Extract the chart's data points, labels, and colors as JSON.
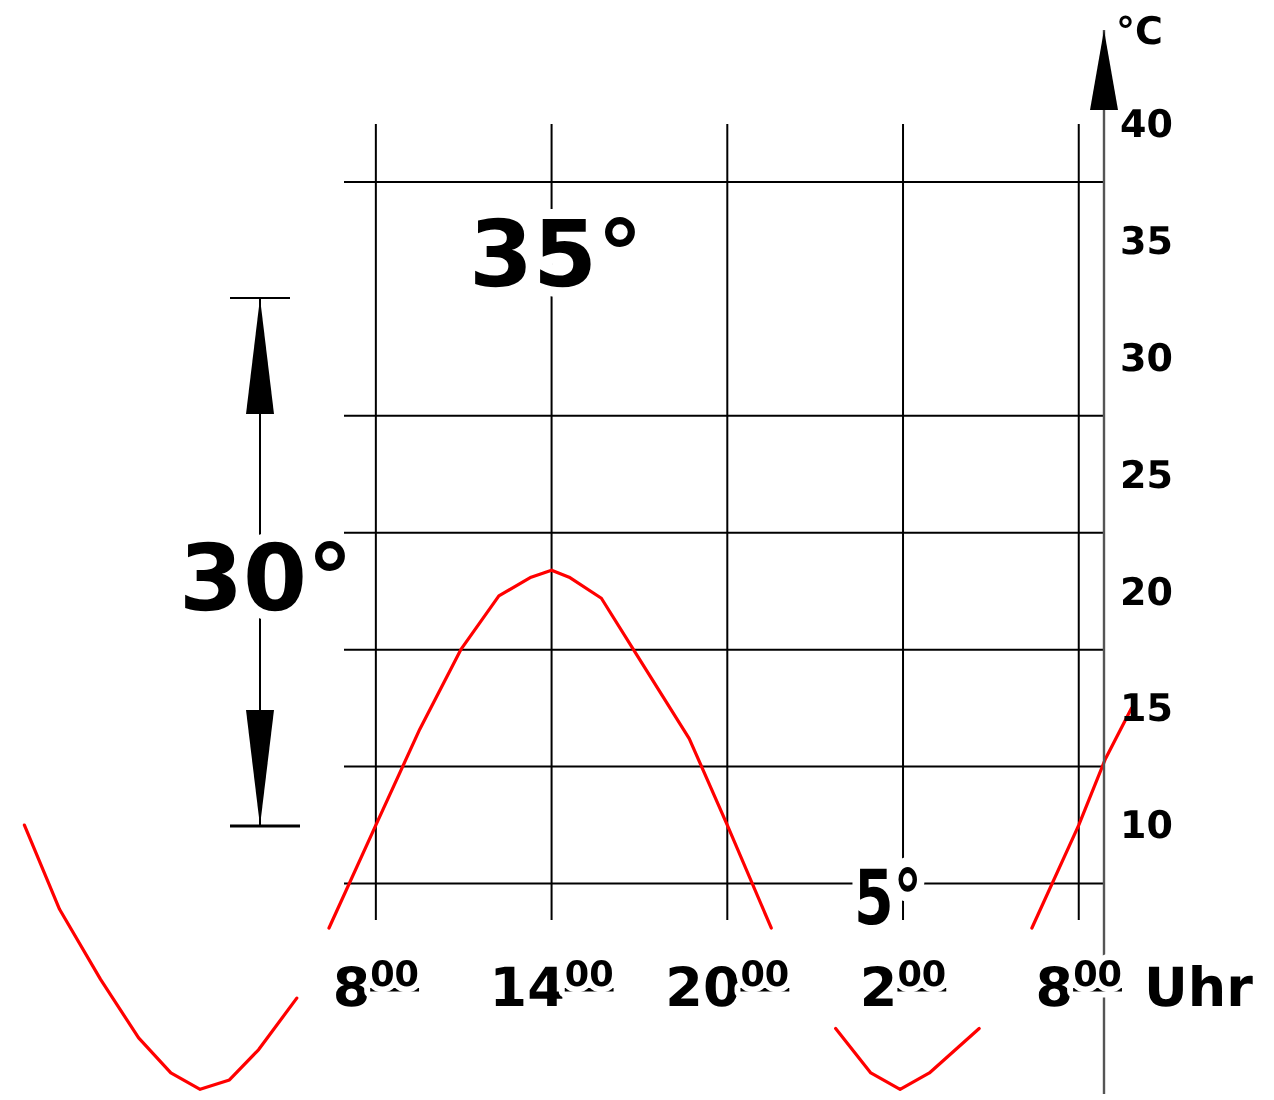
{
  "chart_data": {
    "type": "line",
    "ylabel": "°C",
    "xlabel": "Uhr",
    "annotations": [
      "35°",
      "30°",
      "5°"
    ],
    "xlim": [
      "1999-12-31T19:10",
      "2000-01-02T14:40"
    ],
    "ylim": [
      -1.5,
      44
    ],
    "xticks": [
      {
        "value": "2000-01-01T08:00",
        "label": "8$^{00}$"
      },
      {
        "value": "2000-01-01T14:00",
        "label": "14$^{00}$"
      },
      {
        "value": "2000-01-01T20:00",
        "label": "20$^{00}$"
      },
      {
        "value": "2000-01-02T02:00",
        "label": "2$^{00}$"
      },
      {
        "value": "2000-01-02T08:00",
        "label": "8$^{00}$"
      }
    ],
    "yticks": [
      40,
      35,
      30,
      25,
      20,
      15,
      10
    ],
    "ref_lines": [
      {
        "axis": "y",
        "value": 37.5,
        "color": "#000000"
      },
      {
        "axis": "y",
        "value": 27.5,
        "color": "#000000"
      },
      {
        "axis": "y",
        "value": 22.5,
        "color": "#000000"
      },
      {
        "axis": "y",
        "value": 17.5,
        "color": "#000000"
      },
      {
        "axis": "y",
        "value": 12.5,
        "color": "#000000"
      },
      {
        "axis": "y",
        "value": 7.5,
        "color": "#000000"
      }
    ],
    "grid": "x",
    "marker": "none",
    "line_style": "solid",
    "series": [
      {
        "color": "#ff0000",
        "x": [
          "1999-12-31T20:00",
          "1999-12-31T21:12",
          "1999-12-31T22:36",
          "1999-12-31T23:54",
          "2000-01-01T01:00",
          "2000-01-01T02:00",
          "2000-01-01T03:00",
          "2000-01-01T04:00",
          "2000-01-01T05:18",
          "2000-01-01T05:48",
          "2000-01-01T06:24",
          "2000-01-01T08:00",
          "2000-01-01T09:30",
          "2000-01-01T10:54",
          "2000-01-01T12:12",
          "2000-01-01T13:18",
          "2000-01-01T14:00",
          "2000-01-01T14:36",
          "2000-01-01T15:42",
          "2000-01-01T17:00",
          "2000-01-01T18:42",
          "2000-01-01T20:00",
          "2000-01-01T21:30",
          "2000-01-01T22:36",
          "2000-01-01T23:42",
          "2000-01-02T00:54",
          "2000-01-02T01:54",
          "2000-01-02T02:54",
          "2000-01-02T04:36",
          "2000-01-02T05:30",
          "2000-01-02T06:24",
          "2000-01-02T08:00",
          "2000-01-02T08:54",
          "2000-01-02T09:48"
        ],
        "values": [
          10,
          6.4,
          3.4,
          0.9,
          -0.6,
          -1.3,
          -0.9,
          0.4,
          2.6,
          null,
          5.6,
          10,
          14.1,
          17.5,
          19.8,
          20.6,
          20.9,
          20.6,
          19.7,
          17.1,
          13.7,
          10,
          5.6,
          null,
          1.3,
          -0.6,
          -1.3,
          -0.6,
          1.3,
          null,
          5.6,
          10,
          12.8,
          15
        ]
      }
    ]
  }
}
